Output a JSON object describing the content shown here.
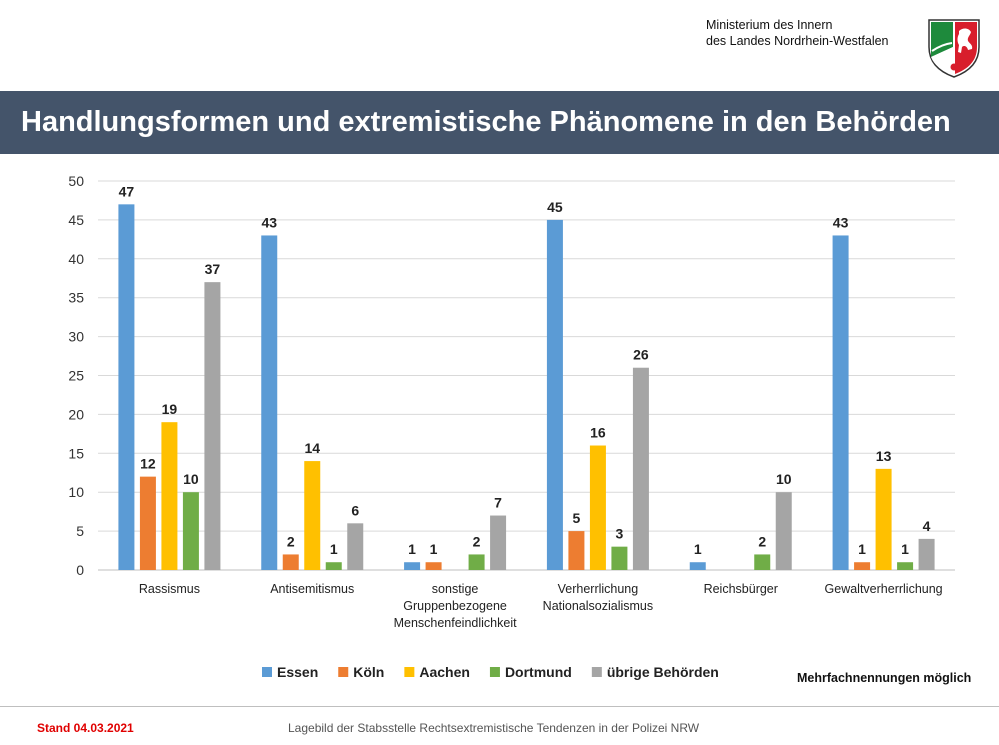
{
  "header": {
    "ministry_line1": "Ministerium des Innern",
    "ministry_line2": "des Landes Nordrhein-Westfalen",
    "logo_icon": "nrw-coat-of-arms-icon"
  },
  "title": "Handlungsformen und extremistische Phänomene in den Behörden",
  "note": "Mehrfachnennungen möglich",
  "footer": {
    "stand": "Stand 04.03.2021",
    "source": "Lagebild der Stabsstelle Rechtsextremistische Tendenzen in der Polizei NRW"
  },
  "colors": {
    "title_bar": "#44546a",
    "stand_text": "#e00000"
  },
  "chart_data": {
    "type": "bar",
    "ylim": [
      0,
      50
    ],
    "yticks": [
      0,
      5,
      10,
      15,
      20,
      25,
      30,
      35,
      40,
      45,
      50
    ],
    "grid": true,
    "legend_position": "bottom",
    "categories": [
      [
        "Rassismus"
      ],
      [
        "Antisemitismus"
      ],
      [
        "sonstige",
        "Gruppenbezogene",
        "Menschenfeindlichkeit"
      ],
      [
        "Verherrlichung",
        "Nationalsozialismus"
      ],
      [
        "Reichsbürger"
      ],
      [
        "Gewaltverherrlichung"
      ]
    ],
    "series": [
      {
        "name": "Essen",
        "color": "#5b9bd5",
        "values": [
          47,
          43,
          1,
          45,
          1,
          43
        ]
      },
      {
        "name": "Köln",
        "color": "#ed7d31",
        "values": [
          12,
          2,
          1,
          5,
          null,
          1
        ]
      },
      {
        "name": "Aachen",
        "color": "#ffc000",
        "values": [
          19,
          14,
          null,
          16,
          null,
          13
        ]
      },
      {
        "name": "Dortmund",
        "color": "#70ad47",
        "values": [
          10,
          1,
          2,
          3,
          2,
          1
        ]
      },
      {
        "name": "übrige Behörden",
        "color": "#a5a5a5",
        "values": [
          37,
          6,
          7,
          26,
          10,
          4
        ]
      }
    ]
  }
}
